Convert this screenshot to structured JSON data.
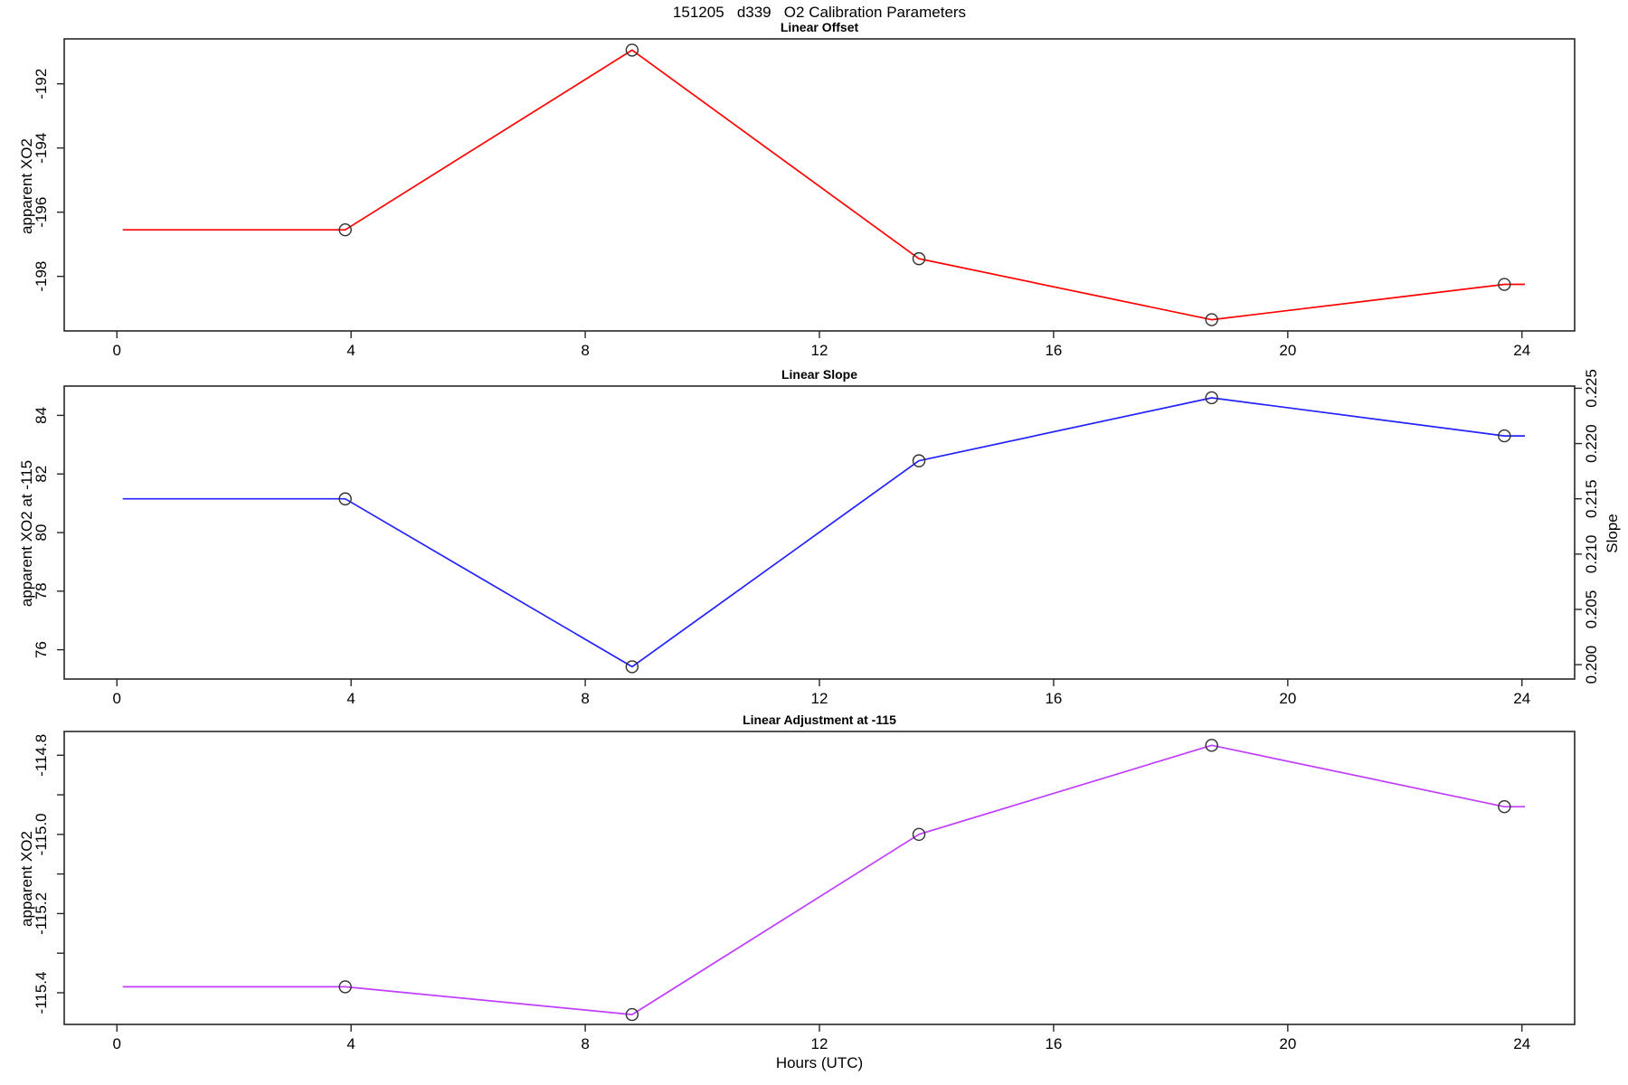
{
  "title": "151205   d339   O2 Calibration Parameters",
  "x_axis": {
    "label": "Hours (UTC)",
    "ticks": [
      0,
      4,
      8,
      12,
      16,
      20,
      24
    ],
    "tick_labels": [
      "0",
      "4",
      "8",
      "12",
      "16",
      "20",
      "24"
    ],
    "lim": [
      -0.9,
      24.9
    ]
  },
  "colors": {
    "axis": "#262626",
    "marker": "#303030",
    "offset_line": "#FF0000",
    "slope_line": "#2222FF",
    "adjustment_line": "#BF3EFF"
  },
  "chart_data": [
    {
      "type": "line",
      "title": "Linear Offset",
      "ylabel": "apparent XO2",
      "color_key": "offset_line",
      "ylim": [
        -199.7,
        -190.6
      ],
      "yticks": [
        -192,
        -194,
        -196,
        -198
      ],
      "ytick_labels": [
        "-192",
        "-194",
        "-196",
        "-198"
      ],
      "x": [
        0.1,
        3.9,
        8.8,
        13.7,
        18.7,
        23.7,
        24.05
      ],
      "y": [
        -196.55,
        -196.55,
        -190.95,
        -197.45,
        -199.35,
        -198.25,
        -198.25
      ],
      "markers": [
        false,
        true,
        true,
        true,
        true,
        true,
        false
      ]
    },
    {
      "type": "line",
      "title": "Linear Slope",
      "ylabel": "apparent XO2 at -115",
      "color_key": "slope_line",
      "ylim": [
        75.0,
        85.0
      ],
      "yticks": [
        76,
        78,
        80,
        82,
        84
      ],
      "ytick_labels": [
        "76",
        "78",
        "80",
        "82",
        "84"
      ],
      "right_axis": {
        "label": "Slope",
        "lim": [
          0.1987,
          0.2252
        ],
        "ticks": [
          0.2,
          0.205,
          0.21,
          0.215,
          0.22,
          0.225
        ],
        "tick_labels": [
          "0.200",
          "0.205",
          "0.210",
          "0.215",
          "0.220",
          "0.225"
        ]
      },
      "x": [
        0.1,
        3.9,
        8.8,
        13.7,
        18.7,
        23.7,
        24.05
      ],
      "y": [
        81.15,
        81.15,
        75.42,
        82.45,
        84.6,
        83.3,
        83.3
      ],
      "markers": [
        false,
        true,
        true,
        true,
        true,
        true,
        false
      ]
    },
    {
      "type": "line",
      "title": "Linear Adjustment at -115",
      "ylabel": "apparent XO2",
      "color_key": "adjustment_line",
      "ylim": [
        -115.48,
        -114.74
      ],
      "yticks": [
        -114.8,
        -114.9,
        -115.0,
        -115.1,
        -115.2,
        -115.3,
        -115.4
      ],
      "ytick_labels": [
        "-114.8",
        "",
        "-115.0",
        "",
        "-115.2",
        "",
        "-115.4"
      ],
      "x": [
        0.1,
        3.9,
        8.8,
        13.7,
        18.7,
        23.7,
        24.05
      ],
      "y": [
        -115.385,
        -115.385,
        -115.455,
        -115.0,
        -114.775,
        -114.93,
        -114.93
      ],
      "markers": [
        false,
        true,
        true,
        true,
        true,
        true,
        false
      ]
    }
  ]
}
